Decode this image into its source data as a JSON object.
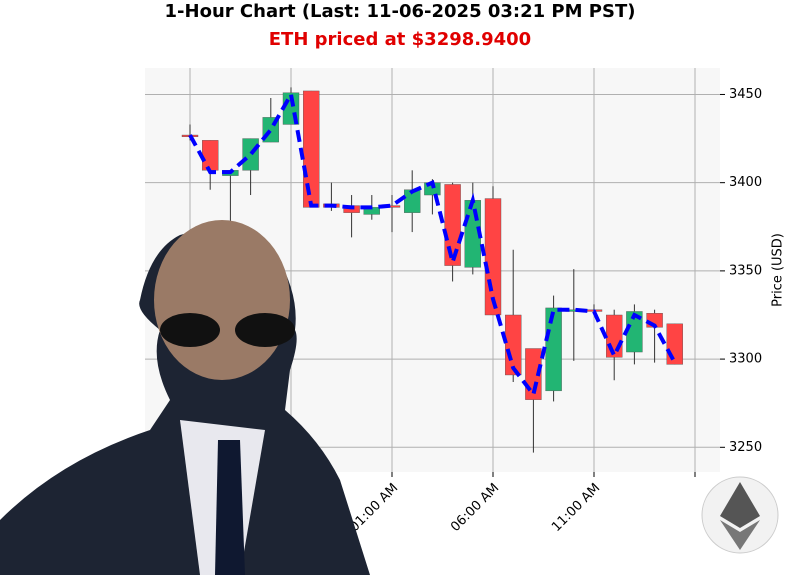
{
  "chart_data": {
    "type": "candlestick",
    "title": "1-Hour Chart (Last: 11-06-2025 03:21 PM PST)",
    "subtitle": "ETH priced at $3298.9400",
    "y_label": "Price (USD)",
    "categories": [
      null,
      null,
      null,
      null,
      null,
      null,
      null,
      null,
      null,
      null,
      "01:00 AM",
      null,
      null,
      null,
      null,
      "06:00 AM",
      null,
      null,
      null,
      null,
      "11:00 AM",
      null,
      null,
      null,
      null
    ],
    "open": [
      3427,
      3424,
      3404,
      3407,
      3423,
      3433,
      3452,
      3388,
      3387,
      3382,
      3387,
      3383,
      3393,
      3399,
      3352,
      3391,
      3325,
      3306,
      3282,
      3327,
      3328,
      3325,
      3304,
      3326,
      3320
    ],
    "high": [
      3433,
      3424,
      3407,
      3425,
      3448,
      3454,
      3452,
      3400,
      3393,
      3393,
      3393,
      3407,
      3402,
      3400,
      3400,
      3398,
      3362,
      3306,
      3336,
      3351,
      3331,
      3328,
      3331,
      3328,
      3320
    ],
    "low": [
      3424,
      3396,
      3378,
      3393,
      3423,
      3433,
      3386,
      3384,
      3369,
      3379,
      3372,
      3372,
      3382,
      3344,
      3348,
      3325,
      3287,
      3247,
      3276,
      3299,
      3325,
      3288,
      3297,
      3298,
      3297
    ],
    "close": [
      3426,
      3407,
      3407,
      3425,
      3437,
      3451,
      3386,
      3386,
      3383,
      3386,
      3386,
      3396,
      3400,
      3353,
      3390,
      3325,
      3291,
      3277,
      3329,
      3328,
      3327,
      3301,
      3327,
      3318,
      3297
    ],
    "up_color": "#22b573",
    "down_color": "#ff4444",
    "line": {
      "color": "#0000ff",
      "values": [
        3427,
        3406,
        3406,
        3416,
        3430,
        3450,
        3387,
        3387,
        3386,
        3386,
        3387,
        3395,
        3400,
        3355,
        3390,
        3334,
        3295,
        3280,
        3328,
        3328,
        3327,
        3302,
        3325,
        3319,
        3298
      ]
    },
    "ylim": [
      3236,
      3465
    ],
    "yticks": [
      3250,
      3300,
      3350,
      3400,
      3450
    ],
    "grid": true
  }
}
